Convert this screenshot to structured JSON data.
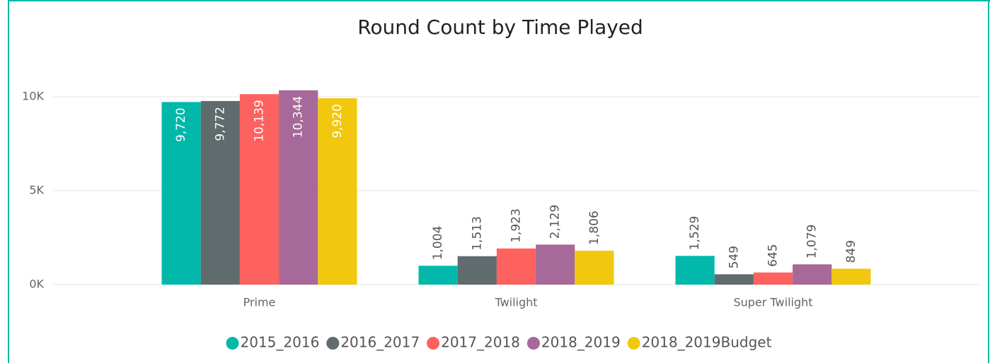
{
  "chart_data": {
    "type": "bar",
    "title": "Round Count by Time Played",
    "categories": [
      "Prime",
      "Twilight",
      "Super Twilight"
    ],
    "series": [
      {
        "name": "2015_2016",
        "color": "#01B8AA",
        "values": [
          9720,
          1004,
          1529
        ],
        "value_labels": [
          "9,720",
          "1,004",
          "1,529"
        ]
      },
      {
        "name": "2016_2017",
        "color": "#5F6B6D",
        "values": [
          9772,
          1513,
          549
        ],
        "value_labels": [
          "9,772",
          "1,513",
          "549"
        ]
      },
      {
        "name": "2017_2018",
        "color": "#FD625E",
        "values": [
          10139,
          1923,
          645
        ],
        "value_labels": [
          "10,139",
          "1,923",
          "645"
        ]
      },
      {
        "name": "2018_2019",
        "color": "#A66999",
        "values": [
          10344,
          2129,
          1079
        ],
        "value_labels": [
          "10,344",
          "2,129",
          "1,079"
        ]
      },
      {
        "name": "2018_2019Budget",
        "color": "#F2C80F",
        "values": [
          9920,
          1806,
          849
        ],
        "value_labels": [
          "9,920",
          "1,806",
          "849"
        ]
      }
    ],
    "ylim": [
      0,
      11000
    ],
    "yticks": [
      {
        "value": 0,
        "label": "0K"
      },
      {
        "value": 5000,
        "label": "5K"
      },
      {
        "value": 10000,
        "label": "10K"
      }
    ],
    "grid": true,
    "legend": "bottom"
  }
}
